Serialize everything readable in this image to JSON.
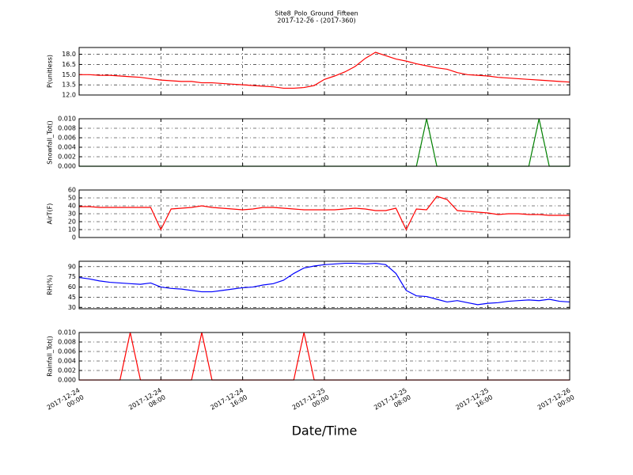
{
  "title": "Site8_Polo_Ground_Fifteen",
  "subtitle": "2017-12-26 - (2017-360)",
  "xlabel": "Date/Time",
  "chart_data": [
    {
      "type": "line",
      "ylabel": "P(unitless)",
      "color": "#ff0000",
      "grid": true,
      "xlim": [
        "2017-12-24 00:00",
        "2017-12-26 00:00"
      ],
      "ylim": [
        12,
        19
      ],
      "yticks": [
        {
          "value": 12,
          "label": "12.0"
        },
        {
          "value": 13.5,
          "label": "13.5"
        },
        {
          "value": 15,
          "label": "15.0"
        },
        {
          "value": 16.5,
          "label": "16.5"
        },
        {
          "value": 18,
          "label": "18.0"
        }
      ],
      "x": [
        "2017-12-24 00:00",
        "2017-12-24 01:00",
        "2017-12-24 02:00",
        "2017-12-24 03:00",
        "2017-12-24 04:00",
        "2017-12-24 05:00",
        "2017-12-24 06:00",
        "2017-12-24 07:00",
        "2017-12-24 08:00",
        "2017-12-24 09:00",
        "2017-12-24 10:00",
        "2017-12-24 11:00",
        "2017-12-24 12:00",
        "2017-12-24 13:00",
        "2017-12-24 14:00",
        "2017-12-24 15:00",
        "2017-12-24 16:00",
        "2017-12-24 17:00",
        "2017-12-24 18:00",
        "2017-12-24 19:00",
        "2017-12-24 20:00",
        "2017-12-24 21:00",
        "2017-12-24 22:00",
        "2017-12-24 23:00",
        "2017-12-25 00:00",
        "2017-12-25 01:00",
        "2017-12-25 02:00",
        "2017-12-25 03:00",
        "2017-12-25 04:00",
        "2017-12-25 05:00",
        "2017-12-25 06:00",
        "2017-12-25 07:00",
        "2017-12-25 08:00",
        "2017-12-25 09:00",
        "2017-12-25 10:00",
        "2017-12-25 11:00",
        "2017-12-25 12:00",
        "2017-12-25 13:00",
        "2017-12-25 14:00",
        "2017-12-25 15:00",
        "2017-12-25 16:00",
        "2017-12-25 17:00",
        "2017-12-25 18:00",
        "2017-12-25 19:00",
        "2017-12-25 20:00",
        "2017-12-25 21:00",
        "2017-12-25 22:00",
        "2017-12-25 23:00",
        "2017-12-26 00:00"
      ],
      "values": [
        15.0,
        15.0,
        14.9,
        14.9,
        14.8,
        14.7,
        14.6,
        14.4,
        14.2,
        14.1,
        14.0,
        14.0,
        13.8,
        13.8,
        13.7,
        13.6,
        13.5,
        13.4,
        13.3,
        13.2,
        13.0,
        13.0,
        13.1,
        13.4,
        14.3,
        14.8,
        15.4,
        16.2,
        17.4,
        18.3,
        17.8,
        17.3,
        17.0,
        16.6,
        16.3,
        16.0,
        15.8,
        15.3,
        15.0,
        14.9,
        14.8,
        14.6,
        14.5,
        14.4,
        14.3,
        14.2,
        14.1,
        14.0,
        13.9
      ]
    },
    {
      "type": "line",
      "ylabel": "Snowfall_Tot()",
      "color": "#008000",
      "grid": true,
      "xlim": [
        "2017-12-24 00:00",
        "2017-12-26 00:00"
      ],
      "ylim": [
        0,
        0.01
      ],
      "yticks": [
        {
          "value": 0,
          "label": "0.000"
        },
        {
          "value": 0.002,
          "label": "0.002"
        },
        {
          "value": 0.004,
          "label": "0.004"
        },
        {
          "value": 0.006,
          "label": "0.006"
        },
        {
          "value": 0.008,
          "label": "0.008"
        },
        {
          "value": 0.01,
          "label": "0.010"
        }
      ],
      "x": [
        "2017-12-24 00:00",
        "2017-12-24 01:00",
        "2017-12-24 02:00",
        "2017-12-24 03:00",
        "2017-12-24 04:00",
        "2017-12-24 05:00",
        "2017-12-24 06:00",
        "2017-12-24 07:00",
        "2017-12-24 08:00",
        "2017-12-24 09:00",
        "2017-12-24 10:00",
        "2017-12-24 11:00",
        "2017-12-24 12:00",
        "2017-12-24 13:00",
        "2017-12-24 14:00",
        "2017-12-24 15:00",
        "2017-12-24 16:00",
        "2017-12-24 17:00",
        "2017-12-24 18:00",
        "2017-12-24 19:00",
        "2017-12-24 20:00",
        "2017-12-24 21:00",
        "2017-12-24 22:00",
        "2017-12-24 23:00",
        "2017-12-25 00:00",
        "2017-12-25 01:00",
        "2017-12-25 02:00",
        "2017-12-25 03:00",
        "2017-12-25 04:00",
        "2017-12-25 05:00",
        "2017-12-25 06:00",
        "2017-12-25 07:00",
        "2017-12-25 08:00",
        "2017-12-25 09:00",
        "2017-12-25 10:00",
        "2017-12-25 11:00",
        "2017-12-25 12:00",
        "2017-12-25 13:00",
        "2017-12-25 14:00",
        "2017-12-25 15:00",
        "2017-12-25 16:00",
        "2017-12-25 17:00",
        "2017-12-25 18:00",
        "2017-12-25 19:00",
        "2017-12-25 20:00",
        "2017-12-25 21:00",
        "2017-12-25 22:00",
        "2017-12-25 23:00",
        "2017-12-26 00:00"
      ],
      "values": [
        0,
        0,
        0,
        0,
        0,
        0,
        0,
        0,
        0,
        0,
        0,
        0,
        0,
        0,
        0,
        0,
        0,
        0,
        0,
        0,
        0,
        0,
        0,
        0,
        0,
        0,
        0,
        0,
        0,
        0,
        0,
        0,
        0,
        0,
        0.01,
        0,
        0,
        0,
        0,
        0,
        0,
        0,
        0,
        0,
        0,
        0.01,
        0,
        0,
        0
      ]
    },
    {
      "type": "line",
      "ylabel": "AirT(F)",
      "color": "#ff0000",
      "grid": true,
      "xlim": [
        "2017-12-24 00:00",
        "2017-12-26 00:00"
      ],
      "ylim": [
        0,
        60
      ],
      "yticks": [
        0,
        10,
        20,
        30,
        40,
        50,
        60
      ],
      "x": [
        "2017-12-24 00:00",
        "2017-12-24 01:00",
        "2017-12-24 02:00",
        "2017-12-24 03:00",
        "2017-12-24 04:00",
        "2017-12-24 05:00",
        "2017-12-24 06:00",
        "2017-12-24 07:00",
        "2017-12-24 08:00",
        "2017-12-24 09:00",
        "2017-12-24 10:00",
        "2017-12-24 11:00",
        "2017-12-24 12:00",
        "2017-12-24 13:00",
        "2017-12-24 14:00",
        "2017-12-24 15:00",
        "2017-12-24 16:00",
        "2017-12-24 17:00",
        "2017-12-24 18:00",
        "2017-12-24 19:00",
        "2017-12-24 20:00",
        "2017-12-24 21:00",
        "2017-12-24 22:00",
        "2017-12-24 23:00",
        "2017-12-25 00:00",
        "2017-12-25 01:00",
        "2017-12-25 02:00",
        "2017-12-25 03:00",
        "2017-12-25 04:00",
        "2017-12-25 05:00",
        "2017-12-25 06:00",
        "2017-12-25 07:00",
        "2017-12-25 08:00",
        "2017-12-25 09:00",
        "2017-12-25 10:00",
        "2017-12-25 11:00",
        "2017-12-25 12:00",
        "2017-12-25 13:00",
        "2017-12-25 14:00",
        "2017-12-25 15:00",
        "2017-12-25 16:00",
        "2017-12-25 17:00",
        "2017-12-25 18:00",
        "2017-12-25 19:00",
        "2017-12-25 20:00",
        "2017-12-25 21:00",
        "2017-12-25 22:00",
        "2017-12-25 23:00",
        "2017-12-26 00:00"
      ],
      "values": [
        39,
        39,
        38,
        38,
        38,
        38,
        38,
        38,
        10,
        36,
        37,
        38,
        40,
        38,
        37,
        36,
        35,
        36,
        38,
        38,
        37,
        36,
        35,
        35,
        35,
        35,
        36,
        37,
        36,
        34,
        34,
        37,
        10,
        36,
        35,
        52,
        48,
        34,
        33,
        32,
        31,
        29,
        30,
        30,
        29,
        29,
        28,
        28,
        28
      ]
    },
    {
      "type": "line",
      "ylabel": "RH(%)",
      "color": "#0000ff",
      "grid": true,
      "xlim": [
        "2017-12-24 00:00",
        "2017-12-26 00:00"
      ],
      "ylim": [
        28,
        98
      ],
      "yticks": [
        30,
        45,
        60,
        75,
        90
      ],
      "x": [
        "2017-12-24 00:00",
        "2017-12-24 01:00",
        "2017-12-24 02:00",
        "2017-12-24 03:00",
        "2017-12-24 04:00",
        "2017-12-24 05:00",
        "2017-12-24 06:00",
        "2017-12-24 07:00",
        "2017-12-24 08:00",
        "2017-12-24 09:00",
        "2017-12-24 10:00",
        "2017-12-24 11:00",
        "2017-12-24 12:00",
        "2017-12-24 13:00",
        "2017-12-24 14:00",
        "2017-12-24 15:00",
        "2017-12-24 16:00",
        "2017-12-24 17:00",
        "2017-12-24 18:00",
        "2017-12-24 19:00",
        "2017-12-24 20:00",
        "2017-12-24 21:00",
        "2017-12-24 22:00",
        "2017-12-24 23:00",
        "2017-12-25 00:00",
        "2017-12-25 01:00",
        "2017-12-25 02:00",
        "2017-12-25 03:00",
        "2017-12-25 04:00",
        "2017-12-25 05:00",
        "2017-12-25 06:00",
        "2017-12-25 07:00",
        "2017-12-25 08:00",
        "2017-12-25 09:00",
        "2017-12-25 10:00",
        "2017-12-25 11:00",
        "2017-12-25 12:00",
        "2017-12-25 13:00",
        "2017-12-25 14:00",
        "2017-12-25 15:00",
        "2017-12-25 16:00",
        "2017-12-25 17:00",
        "2017-12-25 18:00",
        "2017-12-25 19:00",
        "2017-12-25 20:00",
        "2017-12-25 21:00",
        "2017-12-25 22:00",
        "2017-12-25 23:00",
        "2017-12-26 00:00"
      ],
      "values": [
        74,
        72,
        69,
        67,
        66,
        65,
        64,
        66,
        60,
        58,
        57,
        55,
        53,
        53,
        55,
        57,
        59,
        60,
        63,
        65,
        70,
        80,
        88,
        91,
        93,
        94,
        95,
        95,
        94,
        95,
        93,
        80,
        55,
        47,
        46,
        42,
        38,
        40,
        37,
        34,
        36,
        37,
        39,
        40,
        41,
        40,
        42,
        39,
        38
      ]
    },
    {
      "type": "line",
      "ylabel": "Rainfall_Tot()",
      "color": "#ff0000",
      "grid": true,
      "xlim": [
        "2017-12-24 00:00",
        "2017-12-26 00:00"
      ],
      "ylim": [
        0,
        0.01
      ],
      "yticks": [
        {
          "value": 0,
          "label": "0.000"
        },
        {
          "value": 0.002,
          "label": "0.002"
        },
        {
          "value": 0.004,
          "label": "0.004"
        },
        {
          "value": 0.006,
          "label": "0.006"
        },
        {
          "value": 0.008,
          "label": "0.008"
        },
        {
          "value": 0.01,
          "label": "0.010"
        }
      ],
      "xticks": [
        "2017-12-24 00:00",
        "2017-12-24 08:00",
        "2017-12-24 16:00",
        "2017-12-25 00:00",
        "2017-12-25 08:00",
        "2017-12-25 16:00",
        "2017-12-26 00:00"
      ],
      "x": [
        "2017-12-24 00:00",
        "2017-12-24 01:00",
        "2017-12-24 02:00",
        "2017-12-24 03:00",
        "2017-12-24 04:00",
        "2017-12-24 05:00",
        "2017-12-24 06:00",
        "2017-12-24 07:00",
        "2017-12-24 08:00",
        "2017-12-24 09:00",
        "2017-12-24 10:00",
        "2017-12-24 11:00",
        "2017-12-24 12:00",
        "2017-12-24 13:00",
        "2017-12-24 14:00",
        "2017-12-24 15:00",
        "2017-12-24 16:00",
        "2017-12-24 17:00",
        "2017-12-24 18:00",
        "2017-12-24 19:00",
        "2017-12-24 20:00",
        "2017-12-24 21:00",
        "2017-12-24 22:00",
        "2017-12-24 23:00",
        "2017-12-25 00:00",
        "2017-12-25 01:00",
        "2017-12-25 02:00",
        "2017-12-25 03:00",
        "2017-12-25 04:00",
        "2017-12-25 05:00",
        "2017-12-25 06:00",
        "2017-12-25 07:00",
        "2017-12-25 08:00",
        "2017-12-25 09:00",
        "2017-12-25 10:00",
        "2017-12-25 11:00",
        "2017-12-25 12:00",
        "2017-12-25 13:00",
        "2017-12-25 14:00",
        "2017-12-25 15:00",
        "2017-12-25 16:00",
        "2017-12-25 17:00",
        "2017-12-25 18:00",
        "2017-12-25 19:00",
        "2017-12-25 20:00",
        "2017-12-25 21:00",
        "2017-12-25 22:00",
        "2017-12-25 23:00",
        "2017-12-26 00:00"
      ],
      "values": [
        0,
        0,
        0,
        0,
        0,
        0.01,
        0,
        0,
        0,
        0,
        0,
        0,
        0.01,
        0,
        0,
        0,
        0,
        0,
        0,
        0,
        0,
        0,
        0.01,
        0,
        0,
        0,
        0,
        0,
        0,
        0,
        0,
        0,
        0,
        0,
        0,
        0,
        0,
        0,
        0,
        0,
        0,
        0,
        0,
        0,
        0,
        0,
        0,
        0,
        0
      ]
    }
  ]
}
